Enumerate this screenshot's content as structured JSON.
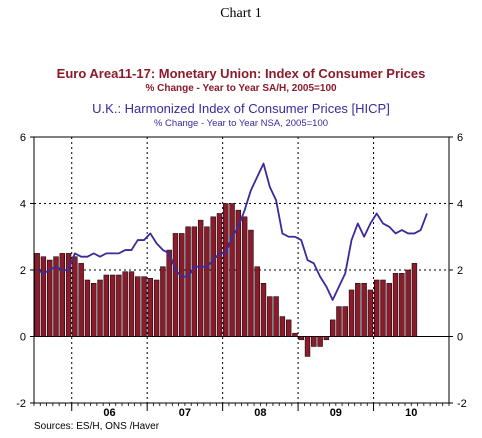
{
  "header": {
    "chart_number": "Chart 1",
    "series1_title": "Euro Area11-17: Monetary Union: Index of Consumer Prices",
    "series1_subtitle": "% Change - Year to Year    SA/H, 2005=100",
    "series2_title": "U.K.: Harmonized Index of Consumer Prices [HICP]",
    "series2_subtitle": "% Change - Year to Year    NSA, 2005=100"
  },
  "footer": {
    "sources": "Sources:  ES/H, ONS /Haver"
  },
  "colors": {
    "bar_fill": "#8b1a2b",
    "line": "#3a2a9c",
    "grid": "#000000"
  },
  "chart_data": {
    "type": "bar",
    "title": "",
    "xlabel": "",
    "ylabel": "",
    "ylim": [
      -2,
      6
    ],
    "yticks": [
      -2,
      0,
      2,
      4,
      6
    ],
    "grid": true,
    "x_year_labels": [
      "06",
      "07",
      "08",
      "09",
      "10"
    ],
    "x_start": "2005-07",
    "series": [
      {
        "name": "Euro Area11-17: Monetary Union: Index of Consumer Prices",
        "type": "bar",
        "values": [
          2.5,
          2.4,
          2.3,
          2.4,
          2.5,
          2.5,
          2.4,
          2.2,
          1.7,
          1.6,
          1.7,
          1.85,
          1.85,
          1.85,
          1.95,
          1.95,
          1.8,
          1.8,
          1.75,
          1.7,
          2.1,
          2.6,
          3.1,
          3.1,
          3.3,
          3.3,
          3.5,
          3.3,
          3.6,
          3.7,
          4.0,
          4.0,
          3.8,
          3.6,
          3.2,
          2.1,
          1.6,
          1.2,
          1.2,
          0.6,
          0.5,
          0.1,
          -0.1,
          -0.6,
          -0.3,
          -0.3,
          -0.1,
          0.5,
          0.9,
          0.9,
          1.4,
          1.6,
          1.6,
          1.4,
          1.7,
          1.7,
          1.6,
          1.9,
          1.9,
          2.0,
          2.2
        ]
      },
      {
        "name": "U.K.: Harmonized Index of Consumer Prices [HICP]",
        "type": "line",
        "values": [
          2.0,
          1.9,
          2.0,
          2.1,
          2.0,
          2.0,
          2.5,
          2.4,
          2.4,
          2.5,
          2.4,
          2.5,
          2.5,
          2.5,
          2.6,
          2.6,
          2.9,
          2.9,
          3.1,
          2.8,
          2.6,
          2.5,
          2.0,
          1.8,
          1.8,
          2.1,
          2.1,
          2.1,
          2.3,
          2.5,
          2.5,
          3.0,
          3.3,
          3.8,
          4.4,
          4.8,
          5.2,
          4.5,
          4.1,
          3.1,
          3.0,
          3.0,
          2.9,
          2.3,
          2.2,
          1.8,
          1.5,
          1.1,
          1.5,
          1.9,
          2.9,
          3.4,
          3.0,
          3.4,
          3.7,
          3.4,
          3.3,
          3.1,
          3.2,
          3.1,
          3.1,
          3.2,
          3.7
        ]
      }
    ]
  }
}
